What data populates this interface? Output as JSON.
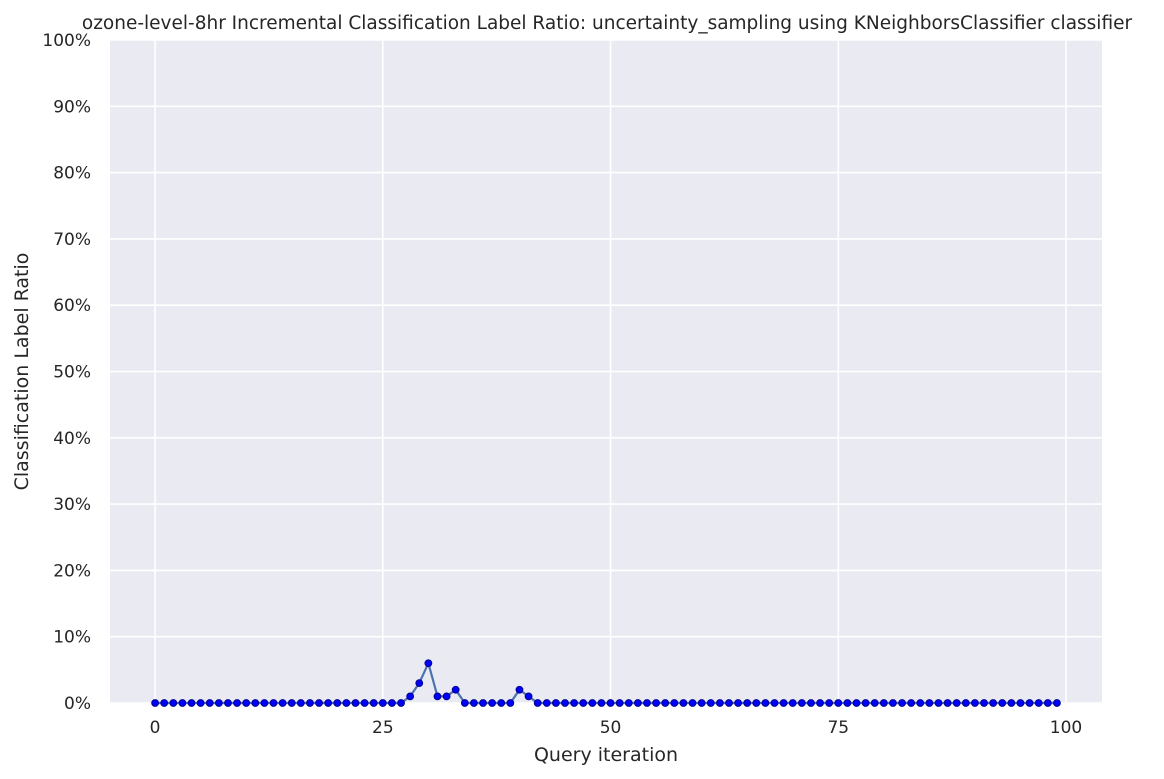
{
  "chart_data": {
    "type": "line",
    "title": "ozone-level-8hr Incremental Classification Label Ratio: uncertainty_sampling using KNeighborsClassifier classifier",
    "xlabel": "Query iteration",
    "ylabel": "Classification Label Ratio",
    "xlim": [
      -4.95,
      103.95
    ],
    "ylim": [
      0,
      1
    ],
    "x_ticks": [
      0,
      25,
      50,
      75,
      100
    ],
    "y_ticks": [
      0,
      0.1,
      0.2,
      0.3,
      0.4,
      0.5,
      0.6,
      0.7,
      0.8,
      0.9,
      1.0
    ],
    "y_tick_labels": [
      "0%",
      "10%",
      "20%",
      "30%",
      "40%",
      "50%",
      "60%",
      "70%",
      "80%",
      "90%",
      "100%"
    ],
    "x_tick_labels": [
      "0",
      "25",
      "50",
      "75",
      "100"
    ],
    "grid": true,
    "background_color": "#eaeaf2",
    "grid_color": "#ffffff",
    "line_color": "#4c72b0",
    "marker_color": "#0000ff",
    "marker_edge_color": "#00008b",
    "series": [
      {
        "x": [
          0,
          1,
          2,
          3,
          4,
          5,
          6,
          7,
          8,
          9,
          10,
          11,
          12,
          13,
          14,
          15,
          16,
          17,
          18,
          19,
          20,
          21,
          22,
          23,
          24,
          25,
          26,
          27,
          28,
          29,
          30,
          31,
          32,
          33,
          34,
          35,
          36,
          37,
          38,
          39,
          40,
          41,
          42,
          43,
          44,
          45,
          46,
          47,
          48,
          49,
          50,
          51,
          52,
          53,
          54,
          55,
          56,
          57,
          58,
          59,
          60,
          61,
          62,
          63,
          64,
          65,
          66,
          67,
          68,
          69,
          70,
          71,
          72,
          73,
          74,
          75,
          76,
          77,
          78,
          79,
          80,
          81,
          82,
          83,
          84,
          85,
          86,
          87,
          88,
          89,
          90,
          91,
          92,
          93,
          94,
          95,
          96,
          97,
          98,
          99
        ],
        "y": [
          0,
          0,
          0,
          0,
          0,
          0,
          0,
          0,
          0,
          0,
          0,
          0,
          0,
          0,
          0,
          0,
          0,
          0,
          0,
          0,
          0,
          0,
          0,
          0,
          0,
          0,
          0,
          0,
          0.01,
          0.03,
          0.06,
          0.01,
          0.01,
          0.02,
          0,
          0,
          0,
          0,
          0,
          0,
          0.02,
          0.01,
          0,
          0,
          0,
          0,
          0,
          0,
          0,
          0,
          0,
          0,
          0,
          0,
          0,
          0,
          0,
          0,
          0,
          0,
          0,
          0,
          0,
          0,
          0,
          0,
          0,
          0,
          0,
          0,
          0,
          0,
          0,
          0,
          0,
          0,
          0,
          0,
          0,
          0,
          0,
          0,
          0,
          0,
          0,
          0,
          0,
          0,
          0,
          0,
          0,
          0,
          0,
          0,
          0,
          0,
          0,
          0,
          0,
          0
        ]
      }
    ]
  }
}
